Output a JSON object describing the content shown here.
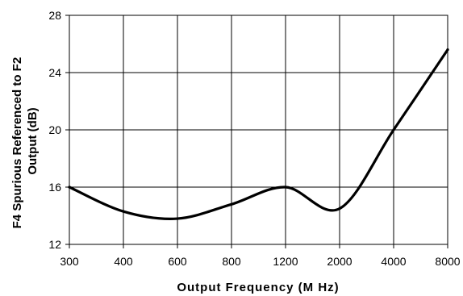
{
  "chart_data": {
    "type": "line",
    "title": "",
    "xlabel": "Output Frequency (M Hz)",
    "ylabel": "F4 Spurious Referenced to F2 Output (dB)",
    "x_tick_labels": [
      "300",
      "400",
      "600",
      "800",
      "1200",
      "2000",
      "4000",
      "8000"
    ],
    "y_ticks": [
      12,
      16,
      20,
      24,
      28
    ],
    "y_tick_labels": [
      "12",
      "16",
      "20",
      "24",
      "28"
    ],
    "ylim": [
      12,
      28
    ],
    "grid": true,
    "legend": "none",
    "series": [
      {
        "color": "#000000",
        "points": [
          {
            "x": "300",
            "y": 16.0
          },
          {
            "x": "400",
            "y": 14.3
          },
          {
            "x": "600",
            "y": 13.8
          },
          {
            "x": "800",
            "y": 14.8
          },
          {
            "x": "1200",
            "y": 16.0
          },
          {
            "x": "2000",
            "y": 14.5
          },
          {
            "x": "4000",
            "y": 20.0
          },
          {
            "x": "8000",
            "y": 25.6
          }
        ]
      }
    ]
  }
}
